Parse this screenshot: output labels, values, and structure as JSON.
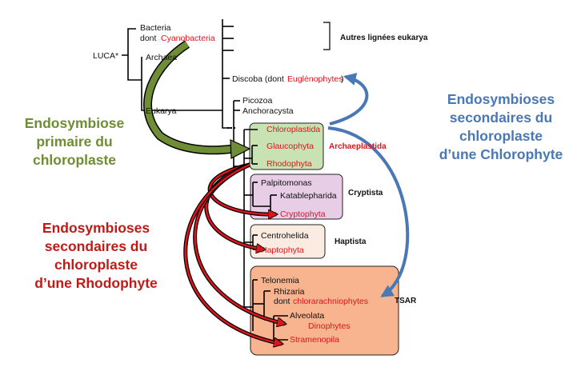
{
  "tree": {
    "luca": "LUCA*",
    "bacteria": "Bacteria",
    "dont": "dont",
    "cyanobacteria": "Cyanobacteria",
    "archaea": "Archaea",
    "eukarya": "Eukarya",
    "other_lineages": "Autres lignées eukarya",
    "discoba": "Discoba (dont",
    "euglenophytes": "Euglénophytes",
    "close_paren": ")",
    "picozoa": "Picozoa",
    "anchoracysta": "Anchoracysta",
    "chloroplastida": "Chloroplastida",
    "glaucophyta": "Glaucophyta",
    "rhodophyta": "Rhodophyta",
    "archaeplastida": "Archaeplastida",
    "palpitomonas": "Palpitomonas",
    "katablepharida": "Katablepharida",
    "cryptophyta": "Cryptophyta",
    "cryptista": "Cryptista",
    "centrohelida": "Centrohelida",
    "haptophyta": "Haptophyta",
    "haptista": "Haptista",
    "telonemia": "Telonemia",
    "rhizaria": "Rhizaria",
    "chlorarachniophytes": "chlorarachniophytes",
    "tsar": "TSAR",
    "alveolata": "Alveolata",
    "dinophytes": "Dinophytes",
    "stramenopila": "Stramenopila"
  },
  "annotations": {
    "primary": [
      "Endosymbiose",
      "primaire du",
      "chloroplaste"
    ],
    "secondary_chlorophyte": [
      "Endosymbioses",
      "secondaires du",
      "chloroplaste",
      "d’une Chlorophyte"
    ],
    "secondary_rhodophyte": [
      "Endosymbioses",
      "secondaires du",
      "chloroplaste",
      "d’une Rhodophyte"
    ]
  },
  "colors": {
    "primary_green": "#6f8d35",
    "chlorophyte_blue": "#4a78b5",
    "rhodophyte_red": "#c11b17",
    "taxon_red": "#e0141b",
    "archaeplastida_box": "#c9e2b3",
    "cryptista_box": "#e7cde6",
    "haptista_box": "#fcebe0",
    "tsar_box": "#f7b48e"
  }
}
